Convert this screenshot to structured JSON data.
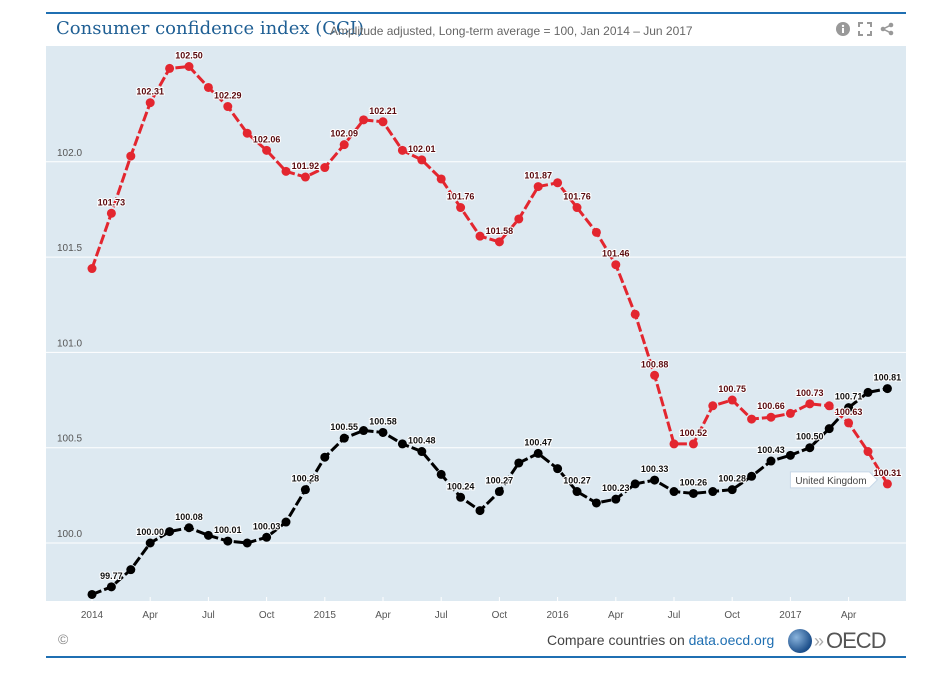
{
  "header": {
    "title": "Consumer confidence index (CCI)",
    "subtitle": "Amplitude adjusted, Long-term average = 100, Jan 2014 – Jun 2017"
  },
  "icons": [
    "info-icon",
    "fullscreen-icon",
    "share-icon"
  ],
  "footer": {
    "copyright": "©",
    "compare_text": "Compare countries on ",
    "compare_link": "data.oecd.org",
    "logo_text": "OECD"
  },
  "colors": {
    "background": "#dde9f1",
    "accent": "#1f6fb2",
    "uk": "#e3262f",
    "other": "#000000"
  },
  "chart_data": {
    "type": "line",
    "title": "Consumer confidence index (CCI)",
    "ylim": [
      99.7,
      102.6
    ],
    "yticks": [
      100.0,
      100.5,
      101.0,
      101.5,
      102.0
    ],
    "ytick_labels": [
      "100.0",
      "100.5",
      "101.0",
      "101.5",
      "102.0"
    ],
    "xtick_labels": [
      "2014",
      "Apr",
      "Jul",
      "Oct",
      "2015",
      "Apr",
      "Jul",
      "Oct",
      "2016",
      "Apr",
      "Jul",
      "Oct",
      "2017",
      "Apr"
    ],
    "x": [
      "2014-01",
      "2014-02",
      "2014-03",
      "2014-04",
      "2014-05",
      "2014-06",
      "2014-07",
      "2014-08",
      "2014-09",
      "2014-10",
      "2014-11",
      "2014-12",
      "2015-01",
      "2015-02",
      "2015-03",
      "2015-04",
      "2015-05",
      "2015-06",
      "2015-07",
      "2015-08",
      "2015-09",
      "2015-10",
      "2015-11",
      "2015-12",
      "2016-01",
      "2016-02",
      "2016-03",
      "2016-04",
      "2016-05",
      "2016-06",
      "2016-07",
      "2016-08",
      "2016-09",
      "2016-10",
      "2016-11",
      "2016-12",
      "2017-01",
      "2017-02",
      "2017-03",
      "2017-04",
      "2017-05",
      "2017-06"
    ],
    "grid": true,
    "series": [
      {
        "name": "United Kingdom",
        "color": "#e3262f",
        "values": [
          101.44,
          101.73,
          102.03,
          102.31,
          102.49,
          102.5,
          102.39,
          102.29,
          102.15,
          102.06,
          101.95,
          101.92,
          101.97,
          102.09,
          102.22,
          102.21,
          102.06,
          102.01,
          101.91,
          101.76,
          101.61,
          101.58,
          101.7,
          101.87,
          101.89,
          101.76,
          101.63,
          101.46,
          101.2,
          100.88,
          100.52,
          100.52,
          100.72,
          100.75,
          100.65,
          100.66,
          100.68,
          100.73,
          100.72,
          100.63,
          100.48,
          100.31
        ]
      },
      {
        "color": "#000000",
        "values": [
          99.73,
          99.77,
          99.86,
          100.0,
          100.06,
          100.08,
          100.04,
          100.01,
          100.0,
          100.03,
          100.11,
          100.28,
          100.45,
          100.55,
          100.59,
          100.58,
          100.52,
          100.48,
          100.36,
          100.24,
          100.17,
          100.27,
          100.42,
          100.47,
          100.39,
          100.27,
          100.21,
          100.23,
          100.31,
          100.33,
          100.27,
          100.26,
          100.27,
          100.28,
          100.35,
          100.43,
          100.46,
          100.5,
          100.6,
          100.71,
          100.79,
          100.81
        ]
      }
    ],
    "tooltip": "United Kingdom"
  }
}
